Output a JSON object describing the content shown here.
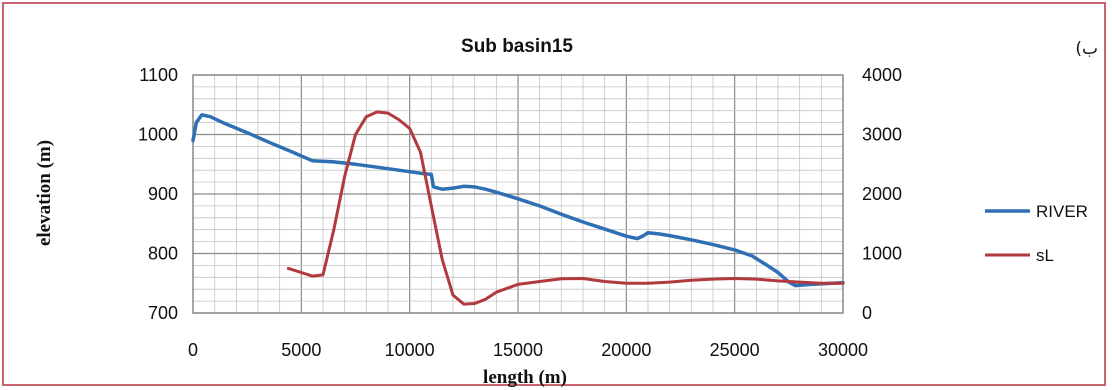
{
  "chart_data": {
    "type": "line",
    "title": "Sub basin15",
    "corner_label": "(ب",
    "xlabel": "length (m)",
    "ylabel": "elevation (m)",
    "xlim": [
      0,
      30000
    ],
    "ylim": [
      700,
      1100
    ],
    "y2lim": [
      0,
      4000
    ],
    "x_ticks": [
      0,
      5000,
      10000,
      15000,
      20000,
      25000,
      30000
    ],
    "y_ticks": [
      700,
      800,
      900,
      1000,
      1100
    ],
    "y2_ticks": [
      0,
      1000,
      2000,
      3000,
      4000
    ],
    "grid": true,
    "legend_position": "right",
    "series": [
      {
        "name": "RIVER",
        "axis": "left",
        "color": "#2f6fb3",
        "points": [
          [
            0,
            990
          ],
          [
            150,
            1020
          ],
          [
            400,
            1033
          ],
          [
            800,
            1030
          ],
          [
            1500,
            1018
          ],
          [
            2500,
            1003
          ],
          [
            3500,
            987
          ],
          [
            4500,
            972
          ],
          [
            5500,
            956
          ],
          [
            6500,
            954
          ],
          [
            7500,
            950
          ],
          [
            8500,
            945
          ],
          [
            9500,
            940
          ],
          [
            10500,
            935
          ],
          [
            11000,
            933
          ],
          [
            11100,
            912
          ],
          [
            11500,
            908
          ],
          [
            12000,
            910
          ],
          [
            12500,
            913
          ],
          [
            13000,
            912
          ],
          [
            13500,
            908
          ],
          [
            14000,
            903
          ],
          [
            15000,
            892
          ],
          [
            16000,
            880
          ],
          [
            17000,
            866
          ],
          [
            18000,
            853
          ],
          [
            19000,
            841
          ],
          [
            20000,
            829
          ],
          [
            20500,
            825
          ],
          [
            20800,
            830
          ],
          [
            21000,
            835
          ],
          [
            21500,
            833
          ],
          [
            22000,
            830
          ],
          [
            23000,
            823
          ],
          [
            24000,
            815
          ],
          [
            25000,
            806
          ],
          [
            25800,
            796
          ],
          [
            26500,
            780
          ],
          [
            27000,
            768
          ],
          [
            27500,
            752
          ],
          [
            27800,
            746
          ],
          [
            28500,
            748
          ],
          [
            29500,
            750
          ],
          [
            30000,
            751
          ]
        ]
      },
      {
        "name": "sL",
        "axis": "right",
        "color": "#b03a3e",
        "points": [
          [
            4400,
            750
          ],
          [
            5000,
            680
          ],
          [
            5500,
            620
          ],
          [
            6000,
            640
          ],
          [
            6500,
            1400
          ],
          [
            7000,
            2300
          ],
          [
            7500,
            3000
          ],
          [
            8000,
            3300
          ],
          [
            8500,
            3380
          ],
          [
            9000,
            3360
          ],
          [
            9500,
            3250
          ],
          [
            10000,
            3100
          ],
          [
            10500,
            2700
          ],
          [
            11000,
            1800
          ],
          [
            11500,
            900
          ],
          [
            12000,
            300
          ],
          [
            12500,
            150
          ],
          [
            13000,
            160
          ],
          [
            13500,
            230
          ],
          [
            14000,
            350
          ],
          [
            15000,
            480
          ],
          [
            16000,
            530
          ],
          [
            17000,
            575
          ],
          [
            18000,
            580
          ],
          [
            19000,
            530
          ],
          [
            20000,
            500
          ],
          [
            21000,
            500
          ],
          [
            22000,
            520
          ],
          [
            23000,
            550
          ],
          [
            24000,
            570
          ],
          [
            25000,
            580
          ],
          [
            26000,
            570
          ],
          [
            27000,
            540
          ],
          [
            28000,
            520
          ],
          [
            29000,
            500
          ],
          [
            30000,
            500
          ]
        ]
      }
    ]
  }
}
